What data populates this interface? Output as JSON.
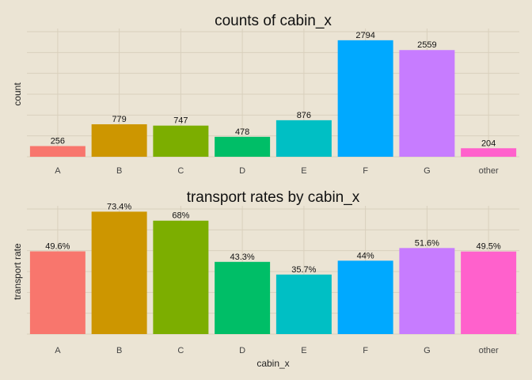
{
  "chart_data": [
    {
      "type": "bar",
      "title": "counts of cabin_x",
      "xlabel": "",
      "ylabel": "count",
      "categories": [
        "A",
        "B",
        "C",
        "D",
        "E",
        "F",
        "G",
        "other"
      ],
      "values": [
        256,
        779,
        747,
        478,
        876,
        2794,
        2559,
        204
      ],
      "value_labels": [
        "256",
        "779",
        "747",
        "478",
        "876",
        "2794",
        "2559",
        "204"
      ],
      "colors": [
        "#F8766D",
        "#CD9600",
        "#7CAE00",
        "#00BE67",
        "#00BFC4",
        "#00A9FF",
        "#C77CFF",
        "#FF61CC"
      ],
      "ylim": [
        0,
        3000
      ],
      "grid": true,
      "legend": "none",
      "y_tick_labels_shown": false
    },
    {
      "type": "bar",
      "title": "transport rates by cabin_x",
      "xlabel": "cabin_x",
      "ylabel": "transport rate",
      "categories": [
        "A",
        "B",
        "C",
        "D",
        "E",
        "F",
        "G",
        "other"
      ],
      "values": [
        0.496,
        0.734,
        0.68,
        0.433,
        0.357,
        0.44,
        0.516,
        0.495
      ],
      "value_labels": [
        "49.6%",
        "73.4%",
        "68%",
        "43.3%",
        "35.7%",
        "44%",
        "51.6%",
        "49.5%"
      ],
      "colors": [
        "#F8766D",
        "#CD9600",
        "#7CAE00",
        "#00BE67",
        "#00BFC4",
        "#00A9FF",
        "#C77CFF",
        "#FF61CC"
      ],
      "ylim": [
        0,
        0.75
      ],
      "grid": true,
      "legend": "none",
      "y_tick_labels_shown": false
    }
  ]
}
